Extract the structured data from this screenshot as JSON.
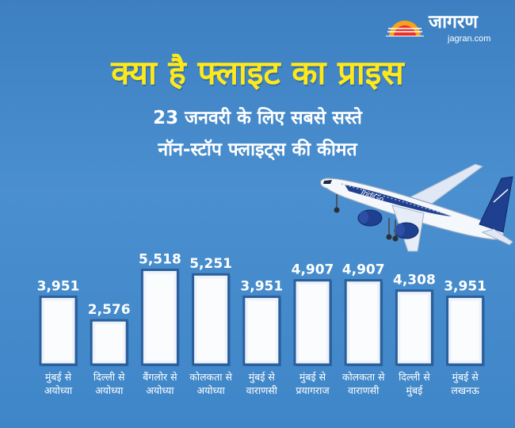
{
  "brand": {
    "name": "जागरण",
    "url": "jagran.com"
  },
  "headline": "क्या है फ्लाइट का प्राइस",
  "subtitle_line1": "23 जनवरी के लिए सबसे सस्ते",
  "subtitle_line2": "नॉन-स्टॉप फ्लाइट्स की कीमत",
  "plane_livery": "IndiGo",
  "colors": {
    "background": "#4a8fcf",
    "headline": "#ffe81a",
    "bar_fill": "#eef3fb",
    "bar_border": "#2a5f9c",
    "text": "#ffffff",
    "logo_accent": "#e8312a"
  },
  "chart_data": {
    "type": "bar",
    "title": "",
    "xlabel": "",
    "ylabel": "",
    "ylim": [
      0,
      6000
    ],
    "grid": false,
    "legend": "none",
    "categories": [
      [
        "मुंबई से",
        "अयोध्या"
      ],
      [
        "दिल्ली से",
        "अयोध्या"
      ],
      [
        "बैंगलोर से",
        "अयोध्या"
      ],
      [
        "कोलकता से",
        "अयोध्या"
      ],
      [
        "मुंबई से",
        "वाराणसी"
      ],
      [
        "मुंबई से",
        "प्रयागराज"
      ],
      [
        "कोलकता से",
        "वाराणसी"
      ],
      [
        "दिल्ली से",
        "मुंबई"
      ],
      [
        "मुंबई से",
        "लखनऊ"
      ]
    ],
    "values": [
      3951,
      2576,
      5518,
      5251,
      3951,
      4907,
      4907,
      4308,
      3951
    ],
    "value_labels": [
      "3,951",
      "2,576",
      "5,518",
      "5,251",
      "3,951",
      "4,907",
      "4,907",
      "4,308",
      "3,951"
    ]
  }
}
